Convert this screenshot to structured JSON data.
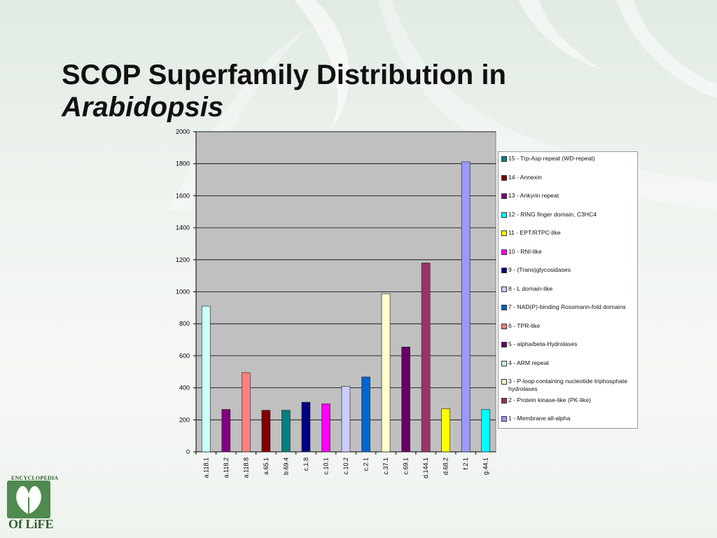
{
  "slide": {
    "title_line1": "SCOP Superfamily Distribution in",
    "title_line2": "Arabidopsis"
  },
  "logo": {
    "top_text": "ENCYCLOPEDIA",
    "bottom_text": "Of LiFE"
  },
  "chart_data": {
    "type": "bar",
    "categories": [
      "a.118.1",
      "a.118.2",
      "a.118.8",
      "a.65.1",
      "b.69.4",
      "c.1.8",
      "c.10.1",
      "c.10.2",
      "c.2.1",
      "c.37.1",
      "c.69.1",
      "d.144.1",
      "d.68.2",
      "f.2.1",
      "g.44.1"
    ],
    "values": [
      910,
      265,
      495,
      260,
      260,
      310,
      300,
      410,
      468,
      988,
      655,
      1180,
      270,
      1812,
      265
    ],
    "colors": [
      "#ccffff",
      "#800080",
      "#ff8080",
      "#800000",
      "#008080",
      "#000080",
      "#ff00ff",
      "#ccccff",
      "#0066cc",
      "#ffffcc",
      "#660066",
      "#993366",
      "#ffff00",
      "#9999ff",
      "#00ffff"
    ],
    "ylim": [
      0,
      2000
    ],
    "yticks": [
      0,
      200,
      400,
      600,
      800,
      1000,
      1200,
      1400,
      1600,
      1800,
      2000
    ],
    "grid": true,
    "plot_background": "#c0c0c0",
    "legend_position": "right",
    "legend": [
      {
        "label": "15 - Trp-Asp repeat (WD-repeat)",
        "color": "#008080"
      },
      {
        "label": "14 - Annexin",
        "color": "#800000"
      },
      {
        "label": "13 - Ankyrin repeat",
        "color": "#800080"
      },
      {
        "label": "12 - RING finger domain, C3HC4",
        "color": "#00ffff"
      },
      {
        "label": "11 - EPT/RTPC-like",
        "color": "#ffff00"
      },
      {
        "label": "10 - RNI-like",
        "color": "#ff00ff"
      },
      {
        "label": "9 - (Trans)glycosidases",
        "color": "#000080"
      },
      {
        "label": "8 - L domain-like",
        "color": "#ccccff"
      },
      {
        "label": "7 - NAD(P)-binding Rossmann-fold domains",
        "color": "#0066cc"
      },
      {
        "label": "6 - TPR-like",
        "color": "#ff8080"
      },
      {
        "label": "5 - alpha/beta-Hydrolases",
        "color": "#660066"
      },
      {
        "label": "4 - ARM repeat",
        "color": "#ccffff"
      },
      {
        "label": "3 - P-loop containing nucleotide triphosphate hydrolases",
        "color": "#ffffcc"
      },
      {
        "label": "2 - Protein kinase-like (PK-like)",
        "color": "#993366"
      },
      {
        "label": "1 - Membrane all-alpha",
        "color": "#9999ff"
      }
    ]
  }
}
